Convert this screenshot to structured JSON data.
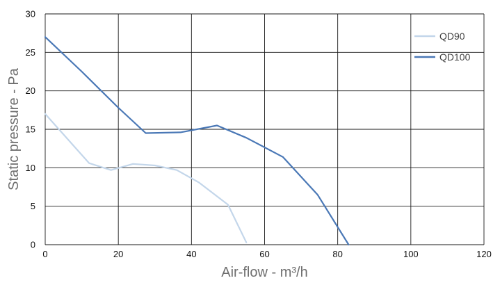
{
  "chart_data": {
    "type": "line",
    "title": "",
    "xlabel": "Air-flow - m³/h",
    "ylabel": "Static pressure - Pa",
    "xlim": [
      0,
      120
    ],
    "ylim": [
      0,
      30
    ],
    "x_ticks": [
      "0",
      "20",
      "40",
      "60",
      "80",
      "100",
      "120"
    ],
    "y_ticks": [
      "0",
      "5",
      "10",
      "15",
      "20",
      "25",
      "30"
    ],
    "grid": true,
    "legend_position": "top-right",
    "series": [
      {
        "name": "QD90",
        "color": "#c3d6ea",
        "points": [
          [
            0,
            17.0
          ],
          [
            12,
            10.6
          ],
          [
            18,
            9.7
          ],
          [
            24,
            10.5
          ],
          [
            30,
            10.3
          ],
          [
            36,
            9.7
          ],
          [
            42,
            8.1
          ],
          [
            50,
            5.2
          ],
          [
            55,
            0.3
          ]
        ]
      },
      {
        "name": "QD100",
        "color": "#4a78b6",
        "points": [
          [
            0,
            27.0
          ],
          [
            10,
            22.5
          ],
          [
            20,
            17.8
          ],
          [
            27.5,
            14.5
          ],
          [
            37,
            14.6
          ],
          [
            47,
            15.5
          ],
          [
            55,
            13.9
          ],
          [
            65,
            11.4
          ],
          [
            74.5,
            6.5
          ],
          [
            83,
            0.0
          ]
        ]
      }
    ]
  }
}
